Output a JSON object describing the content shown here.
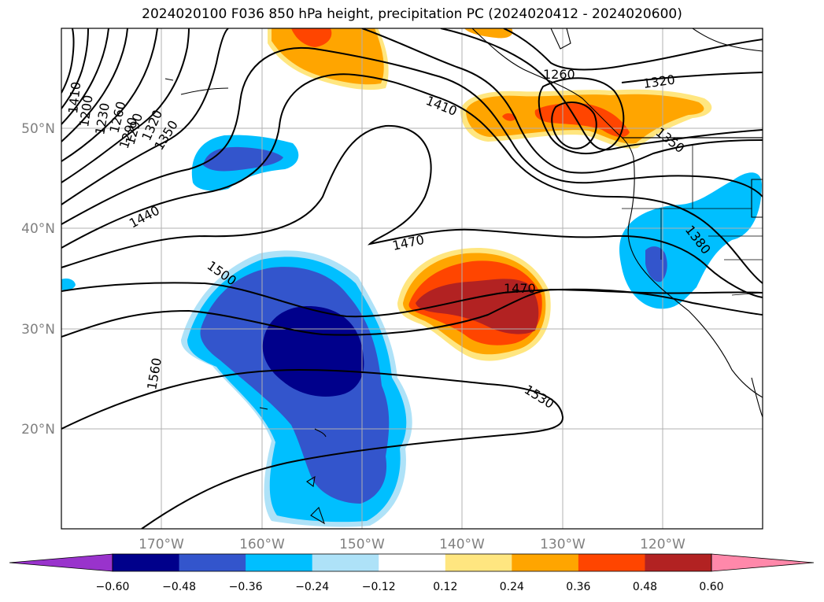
{
  "title": "2024020100 F036 850 hPa height, precipitation PC (2024020412 - 2024020600)",
  "axes": {
    "lat_labels": [
      "50°N",
      "40°N",
      "30°N",
      "20°N"
    ],
    "lon_labels": [
      "170°W",
      "160°W",
      "150°W",
      "140°W",
      "130°W",
      "120°W"
    ]
  },
  "contour_labels": [
    "1410",
    "1260",
    "1320",
    "1350",
    "1380",
    "1440",
    "1470",
    "1470",
    "1500",
    "1530",
    "1560",
    "1350",
    "1320",
    "1290",
    "1260",
    "1230",
    "1200",
    "1410",
    "1290"
  ],
  "colorbar": {
    "ticks": [
      "−0.60",
      "−0.48",
      "−0.36",
      "−0.24",
      "−0.12",
      "0.12",
      "0.24",
      "0.36",
      "0.48",
      "0.60"
    ],
    "colors": [
      "#9933cc",
      "#00008b",
      "#3355cc",
      "#00bfff",
      "#aee2f8",
      "#ffffff",
      "#ffe680",
      "#ffa500",
      "#ff4500",
      "#b22222",
      "#ff88aa"
    ]
  }
}
